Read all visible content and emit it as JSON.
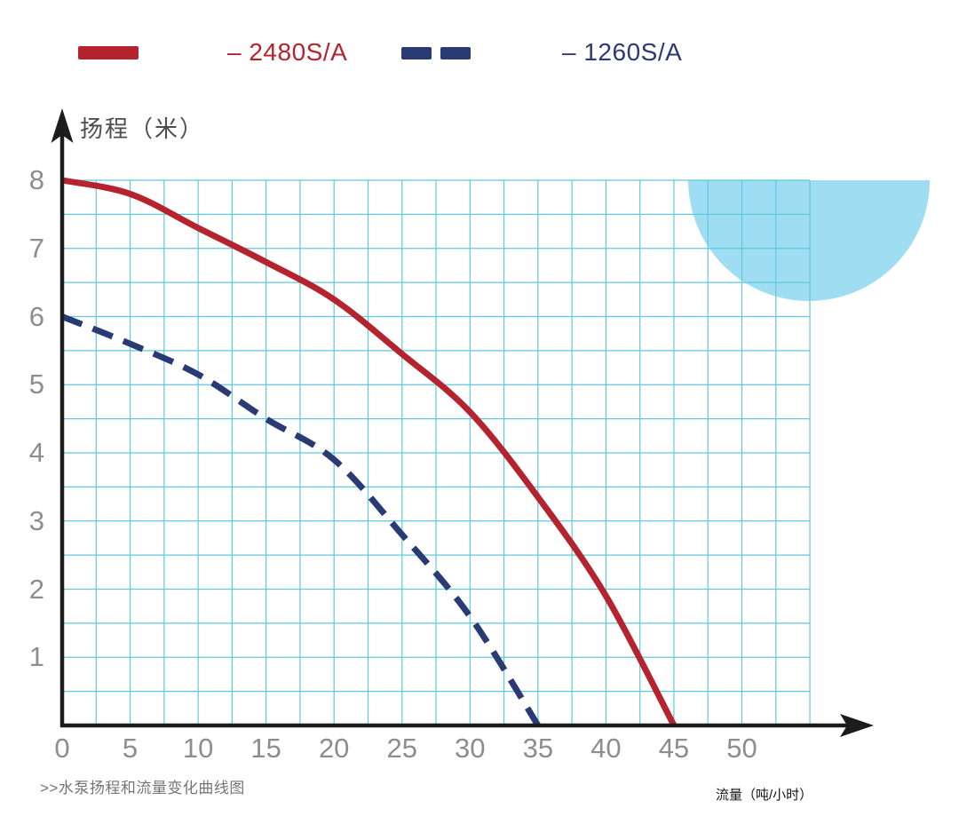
{
  "page": {
    "background": "#ffffff"
  },
  "legend": {
    "position": "top",
    "items": [
      {
        "label": "– 2480S/A",
        "color": "#b5242e",
        "swatch": "solid-line"
      },
      {
        "label": "– 1260S/A",
        "color": "#2a3a74",
        "swatch": "dashed-line"
      }
    ]
  },
  "chart_data": {
    "type": "line",
    "title": ">>水泵扬程和流量变化曲线图",
    "xlabel": "流量（吨/小时）",
    "ylabel": "扬程（米）",
    "xlim": [
      0,
      55
    ],
    "ylim": [
      0,
      8
    ],
    "x_ticks": [
      0,
      5,
      10,
      15,
      20,
      25,
      30,
      35,
      40,
      45,
      50
    ],
    "y_ticks": [
      1,
      2,
      3,
      4,
      5,
      6,
      7,
      8
    ],
    "grid": {
      "shown": true,
      "x_step": 2.5,
      "y_step": 0.5,
      "color": "#5fc9dc"
    },
    "legend_position": "top",
    "axis_color": "#1c1c1c",
    "tick_label_color": "#8d8d8d",
    "decor_circle_color": "#9fdef2",
    "series": [
      {
        "name": "2480S/A",
        "color": "#b5242e",
        "style": "solid",
        "x": [
          0,
          5,
          10,
          15,
          20,
          25,
          30,
          35,
          40,
          45
        ],
        "y": [
          8.0,
          7.8,
          7.3,
          6.8,
          6.25,
          5.45,
          4.6,
          3.35,
          1.9,
          0
        ]
      },
      {
        "name": "1260S/A",
        "color": "#2a3a74",
        "style": "dashed",
        "x": [
          0,
          5,
          10,
          15,
          20,
          25,
          30,
          35
        ],
        "y": [
          6.0,
          5.6,
          5.15,
          4.5,
          3.9,
          2.8,
          1.6,
          0
        ]
      }
    ]
  }
}
